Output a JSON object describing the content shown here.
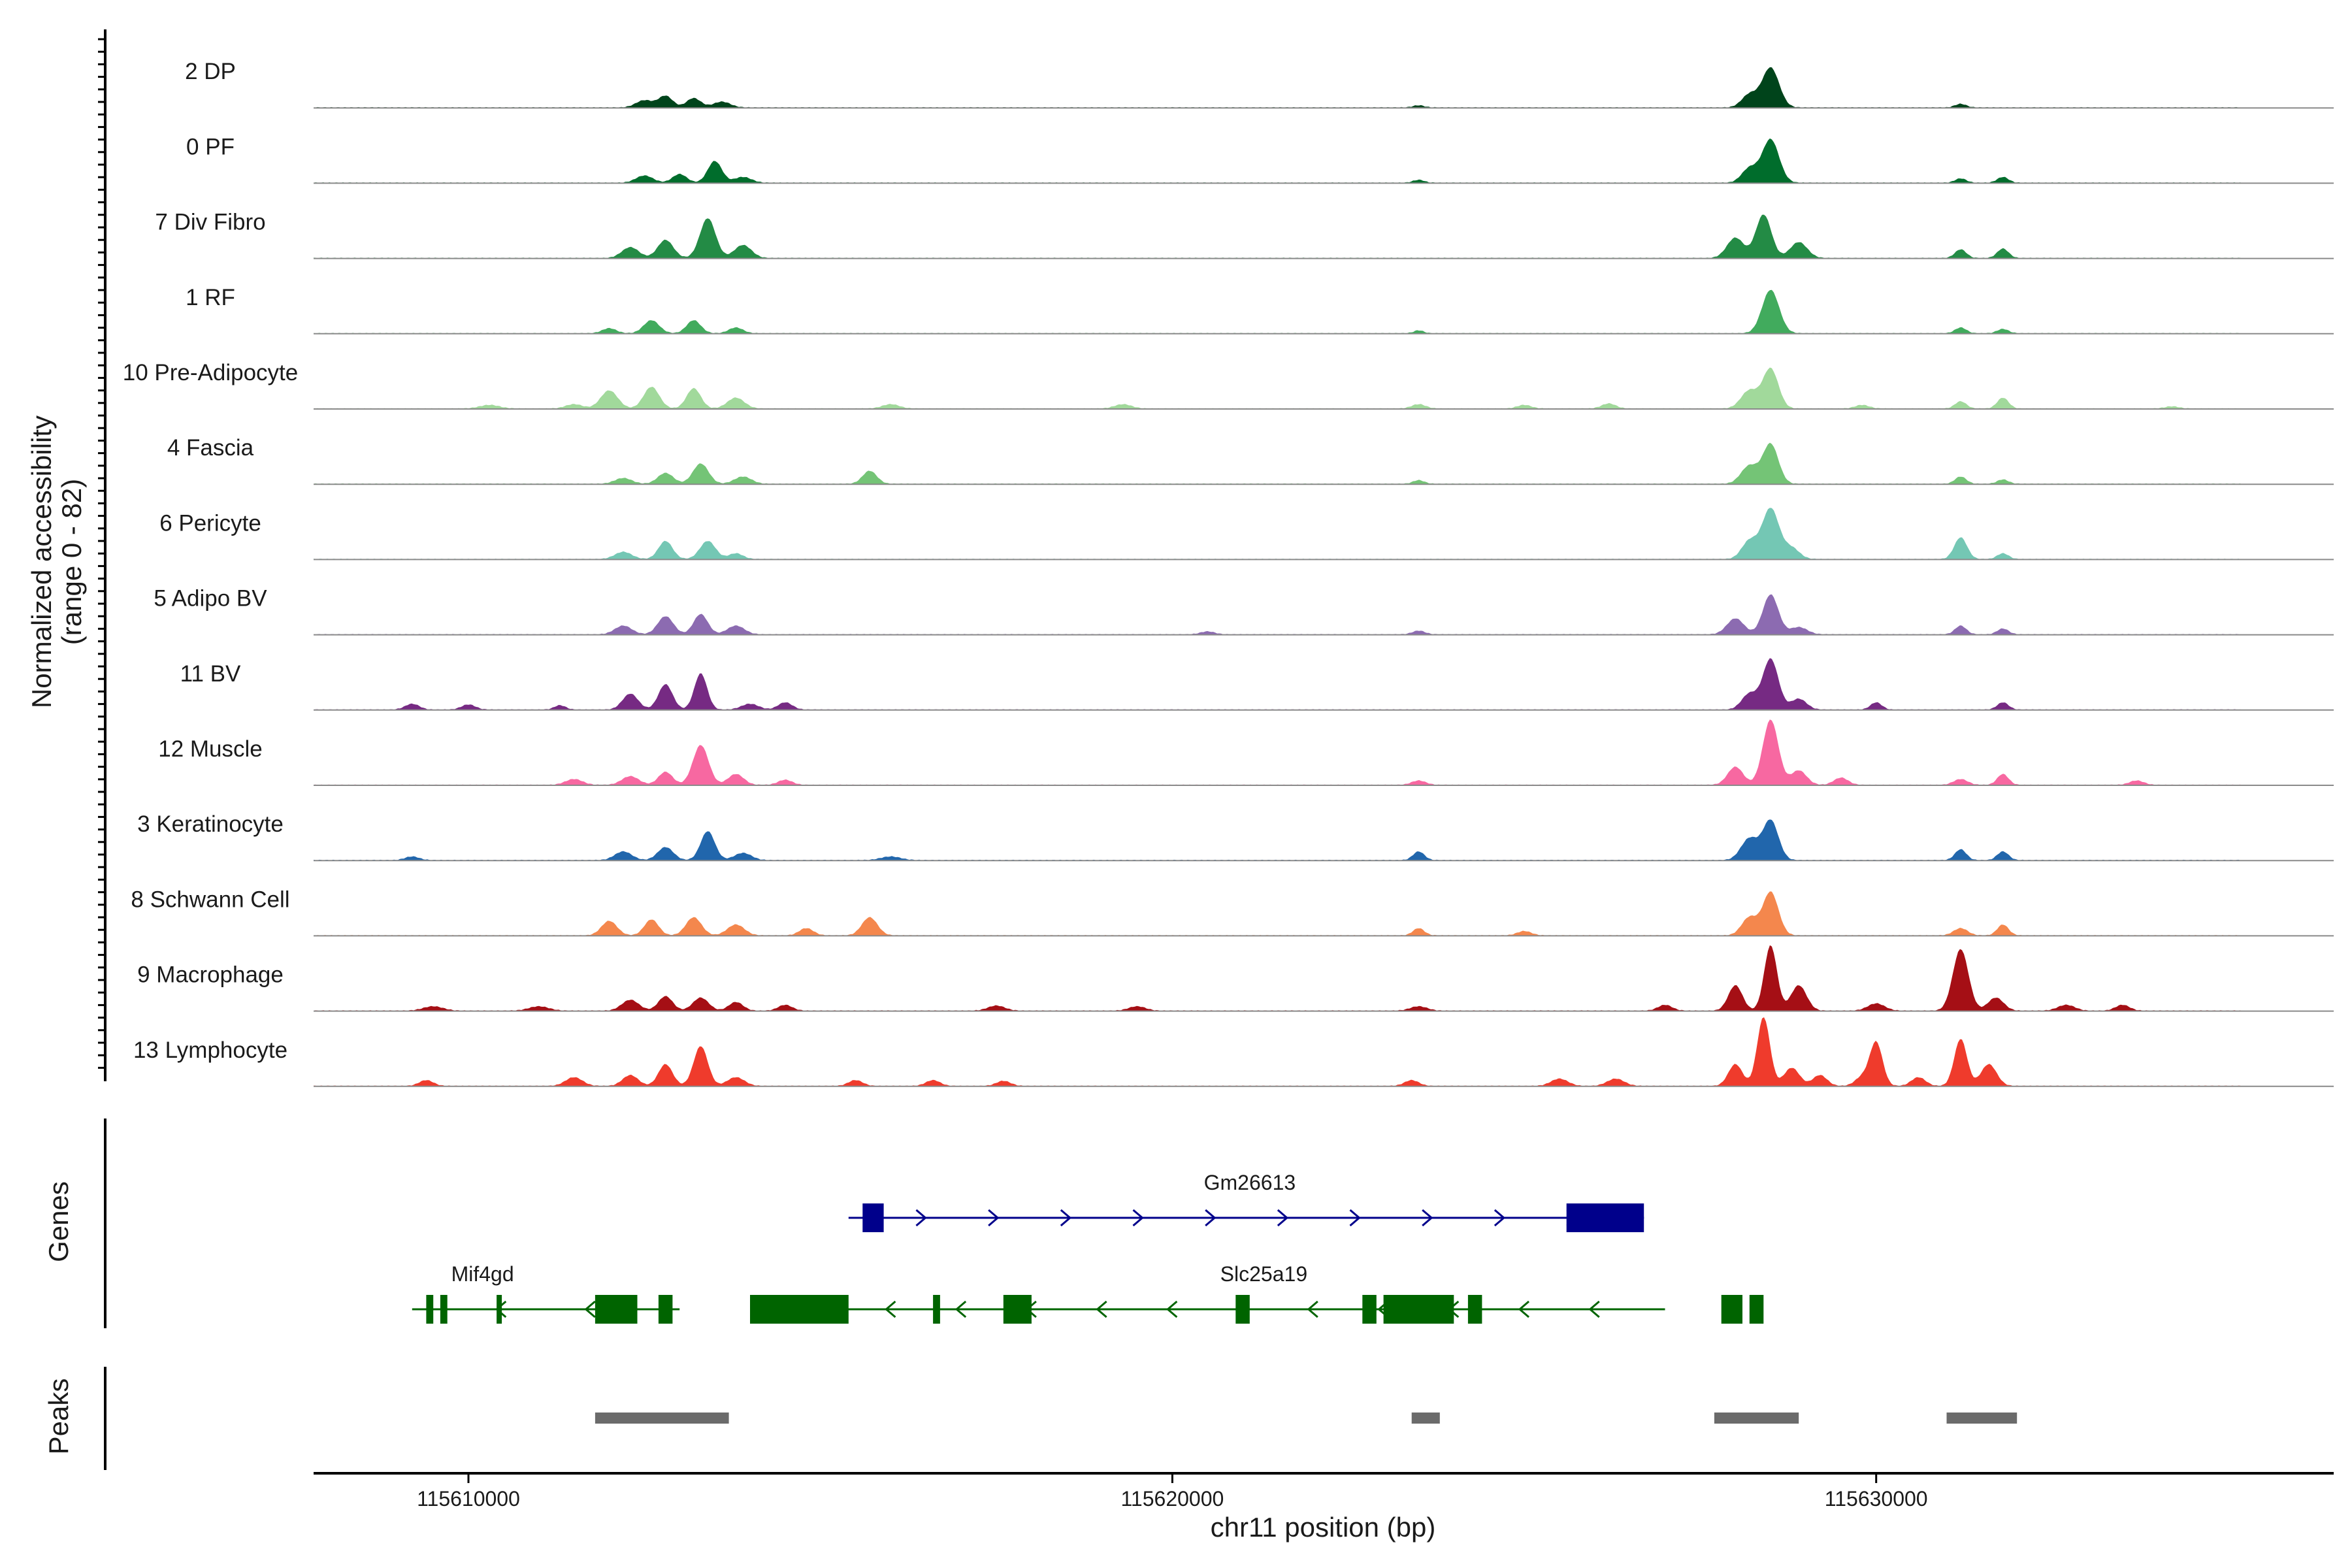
{
  "chart_data": {
    "type": "area",
    "ylabel_line1": "Normalized accessibility",
    "ylabel_line2": "(range 0 - 82)",
    "y_range": [
      0,
      82
    ],
    "xlabel": "chr11 position (bp)",
    "xlim": [
      115607800,
      115636500
    ],
    "x_ticks": [
      115610000,
      115620000,
      115630000
    ],
    "x_tick_labels": [
      "115610000",
      "115620000",
      "115630000"
    ],
    "genes_label": "Genes",
    "peaks_label": "Peaks",
    "tracks": [
      {
        "name": "2 DP",
        "color": "#00441b",
        "peaks": [
          [
            115612500,
            10,
            120
          ],
          [
            115612800,
            16,
            100
          ],
          [
            115613200,
            13,
            100
          ],
          [
            115613600,
            8,
            120
          ],
          [
            115623500,
            3,
            80
          ],
          [
            115628200,
            18,
            110
          ],
          [
            115628500,
            55,
            120
          ],
          [
            115631200,
            5,
            80
          ]
        ]
      },
      {
        "name": "0 PF",
        "color": "#006d2c",
        "peaks": [
          [
            115612500,
            10,
            120
          ],
          [
            115613000,
            12,
            100
          ],
          [
            115613500,
            30,
            100
          ],
          [
            115613900,
            8,
            120
          ],
          [
            115623500,
            4,
            80
          ],
          [
            115628200,
            20,
            110
          ],
          [
            115628500,
            60,
            120
          ],
          [
            115631200,
            6,
            80
          ],
          [
            115631800,
            8,
            80
          ]
        ]
      },
      {
        "name": "7 Div Fibro",
        "color": "#238b45",
        "peaks": [
          [
            115612300,
            15,
            120
          ],
          [
            115612800,
            25,
            110
          ],
          [
            115613400,
            55,
            110
          ],
          [
            115613900,
            18,
            120
          ],
          [
            115628000,
            28,
            120
          ],
          [
            115628400,
            60,
            110
          ],
          [
            115628900,
            22,
            120
          ],
          [
            115631200,
            12,
            80
          ],
          [
            115631800,
            13,
            80
          ]
        ]
      },
      {
        "name": "1 RF",
        "color": "#41ab5d",
        "peaks": [
          [
            115612000,
            7,
            100
          ],
          [
            115612600,
            18,
            110
          ],
          [
            115613200,
            18,
            100
          ],
          [
            115613800,
            8,
            100
          ],
          [
            115623500,
            4,
            70
          ],
          [
            115628500,
            60,
            120
          ],
          [
            115631200,
            8,
            80
          ],
          [
            115631800,
            6,
            80
          ]
        ]
      },
      {
        "name": "10 Pre-Adipocyte",
        "color": "#a1d99b",
        "peaks": [
          [
            115610300,
            5,
            140
          ],
          [
            115611500,
            6,
            120
          ],
          [
            115612000,
            25,
            120
          ],
          [
            115612600,
            30,
            110
          ],
          [
            115613200,
            28,
            100
          ],
          [
            115613800,
            15,
            120
          ],
          [
            115616000,
            6,
            120
          ],
          [
            115619300,
            6,
            120
          ],
          [
            115623500,
            6,
            100
          ],
          [
            115625000,
            5,
            100
          ],
          [
            115626200,
            7,
            100
          ],
          [
            115628200,
            25,
            120
          ],
          [
            115628500,
            55,
            110
          ],
          [
            115629800,
            5,
            100
          ],
          [
            115631200,
            10,
            80
          ],
          [
            115631800,
            15,
            80
          ],
          [
            115634200,
            3,
            100
          ]
        ]
      },
      {
        "name": "4 Fascia",
        "color": "#74c476",
        "peaks": [
          [
            115612200,
            8,
            120
          ],
          [
            115612800,
            15,
            110
          ],
          [
            115613300,
            28,
            110
          ],
          [
            115613900,
            10,
            120
          ],
          [
            115615700,
            18,
            100
          ],
          [
            115623500,
            5,
            80
          ],
          [
            115628200,
            25,
            120
          ],
          [
            115628500,
            55,
            110
          ],
          [
            115631200,
            10,
            80
          ],
          [
            115631800,
            6,
            80
          ]
        ]
      },
      {
        "name": "6 Pericyte",
        "color": "#74c7b4",
        "peaks": [
          [
            115612200,
            10,
            120
          ],
          [
            115612800,
            25,
            100
          ],
          [
            115613400,
            25,
            110
          ],
          [
            115613800,
            8,
            100
          ],
          [
            115628200,
            25,
            110
          ],
          [
            115628500,
            70,
            120
          ],
          [
            115628800,
            15,
            110
          ],
          [
            115631200,
            30,
            90
          ],
          [
            115631800,
            8,
            80
          ]
        ]
      },
      {
        "name": "5 Adipo BV",
        "color": "#8c6bb1",
        "peaks": [
          [
            115612200,
            12,
            120
          ],
          [
            115612800,
            25,
            110
          ],
          [
            115613300,
            28,
            100
          ],
          [
            115613800,
            12,
            120
          ],
          [
            115620500,
            4,
            100
          ],
          [
            115623500,
            5,
            90
          ],
          [
            115628000,
            22,
            120
          ],
          [
            115628500,
            55,
            110
          ],
          [
            115628900,
            10,
            120
          ],
          [
            115631200,
            12,
            80
          ],
          [
            115631800,
            8,
            80
          ]
        ]
      },
      {
        "name": "11 BV",
        "color": "#762a83",
        "peaks": [
          [
            115609200,
            8,
            100
          ],
          [
            115610000,
            7,
            100
          ],
          [
            115611300,
            6,
            80
          ],
          [
            115612300,
            22,
            110
          ],
          [
            115612800,
            35,
            100
          ],
          [
            115613300,
            50,
            90
          ],
          [
            115614000,
            8,
            120
          ],
          [
            115614500,
            10,
            100
          ],
          [
            115628200,
            22,
            110
          ],
          [
            115628500,
            70,
            110
          ],
          [
            115628900,
            15,
            110
          ],
          [
            115630000,
            10,
            80
          ],
          [
            115631800,
            10,
            80
          ]
        ]
      },
      {
        "name": "12 Muscle",
        "color": "#f768a1",
        "peaks": [
          [
            115611500,
            8,
            120
          ],
          [
            115612300,
            12,
            120
          ],
          [
            115612800,
            18,
            100
          ],
          [
            115613300,
            55,
            110
          ],
          [
            115613800,
            15,
            110
          ],
          [
            115614500,
            7,
            100
          ],
          [
            115623500,
            6,
            100
          ],
          [
            115628000,
            25,
            110
          ],
          [
            115628500,
            90,
            110
          ],
          [
            115628900,
            20,
            110
          ],
          [
            115629500,
            10,
            100
          ],
          [
            115631200,
            8,
            100
          ],
          [
            115631800,
            15,
            80
          ],
          [
            115633700,
            6,
            100
          ]
        ]
      },
      {
        "name": "3 Keratinocyte",
        "color": "#2166ac",
        "peaks": [
          [
            115609200,
            5,
            100
          ],
          [
            115612200,
            12,
            120
          ],
          [
            115612800,
            18,
            110
          ],
          [
            115613400,
            40,
            100
          ],
          [
            115613900,
            10,
            120
          ],
          [
            115616000,
            5,
            140
          ],
          [
            115623500,
            12,
            80
          ],
          [
            115628200,
            30,
            120
          ],
          [
            115628500,
            55,
            110
          ],
          [
            115631200,
            15,
            80
          ],
          [
            115631800,
            12,
            80
          ]
        ]
      },
      {
        "name": "8 Schwann Cell",
        "color": "#f4874d",
        "peaks": [
          [
            115612000,
            20,
            110
          ],
          [
            115612600,
            22,
            100
          ],
          [
            115613200,
            25,
            110
          ],
          [
            115613800,
            15,
            120
          ],
          [
            115614800,
            10,
            100
          ],
          [
            115615700,
            25,
            110
          ],
          [
            115623500,
            10,
            80
          ],
          [
            115625000,
            6,
            100
          ],
          [
            115628200,
            25,
            110
          ],
          [
            115628500,
            60,
            110
          ],
          [
            115631200,
            10,
            100
          ],
          [
            115631800,
            15,
            80
          ]
        ]
      },
      {
        "name": "9 Macrophage",
        "color": "#a50f15",
        "peaks": [
          [
            115609500,
            6,
            140
          ],
          [
            115611000,
            6,
            140
          ],
          [
            115612300,
            15,
            120
          ],
          [
            115612800,
            20,
            100
          ],
          [
            115613300,
            18,
            110
          ],
          [
            115613800,
            12,
            100
          ],
          [
            115614500,
            8,
            100
          ],
          [
            115617500,
            7,
            120
          ],
          [
            115619500,
            6,
            120
          ],
          [
            115623500,
            6,
            120
          ],
          [
            115627000,
            8,
            100
          ],
          [
            115628000,
            35,
            100
          ],
          [
            115628500,
            90,
            90
          ],
          [
            115628900,
            35,
            110
          ],
          [
            115630000,
            10,
            120
          ],
          [
            115631200,
            85,
            110
          ],
          [
            115631700,
            18,
            110
          ],
          [
            115632700,
            8,
            120
          ],
          [
            115633500,
            8,
            100
          ]
        ]
      },
      {
        "name": "13 Lymphocyte",
        "color": "#ef3b2c",
        "peaks": [
          [
            115609400,
            8,
            100
          ],
          [
            115611500,
            12,
            120
          ],
          [
            115612300,
            15,
            110
          ],
          [
            115612800,
            30,
            100
          ],
          [
            115613300,
            55,
            100
          ],
          [
            115613800,
            12,
            120
          ],
          [
            115615500,
            8,
            100
          ],
          [
            115616600,
            8,
            100
          ],
          [
            115617600,
            7,
            100
          ],
          [
            115623400,
            8,
            100
          ],
          [
            115625500,
            10,
            120
          ],
          [
            115626300,
            10,
            120
          ],
          [
            115628000,
            30,
            100
          ],
          [
            115628400,
            95,
            90
          ],
          [
            115628800,
            25,
            110
          ],
          [
            115629200,
            15,
            100
          ],
          [
            115629800,
            12,
            100
          ],
          [
            115630000,
            60,
            90
          ],
          [
            115630600,
            12,
            100
          ],
          [
            115631200,
            65,
            90
          ],
          [
            115631600,
            30,
            110
          ]
        ]
      }
    ],
    "genes": [
      {
        "name": "Gm26613",
        "strand": "+",
        "color": "#00008b",
        "start": 115615400,
        "end": 115626700,
        "row": 0,
        "label_pos": 115621100,
        "exons": [
          [
            115615600,
            115615900
          ],
          [
            115625600,
            115626700
          ]
        ]
      },
      {
        "name": "Mif4gd",
        "strand": "-",
        "color": "#006400",
        "start": 115609200,
        "end": 115613000,
        "row": 1,
        "label_pos": 115610200,
        "exons": [
          [
            115609400,
            115609500
          ],
          [
            115609600,
            115609700
          ],
          [
            115610400,
            115610450
          ],
          [
            115611800,
            115612400
          ],
          [
            115612700,
            115612900
          ]
        ]
      },
      {
        "name": "Slc25a19",
        "strand": "-",
        "color": "#006400",
        "start": 115614000,
        "end": 115627000,
        "row": 1,
        "label_pos": 115621300,
        "exons": [
          [
            115614000,
            115615400
          ],
          [
            115616600,
            115616700
          ],
          [
            115617600,
            115618000
          ],
          [
            115620900,
            115621100
          ],
          [
            115622700,
            115622900
          ],
          [
            115623000,
            115624000
          ],
          [
            115624200,
            115624400
          ],
          [
            115627800,
            115628100
          ],
          [
            115628200,
            115628400
          ]
        ]
      }
    ],
    "peak_regions": [
      [
        115611800,
        115613700
      ],
      [
        115623400,
        115623800
      ],
      [
        115627700,
        115628900
      ],
      [
        115631000,
        115632000
      ]
    ]
  }
}
